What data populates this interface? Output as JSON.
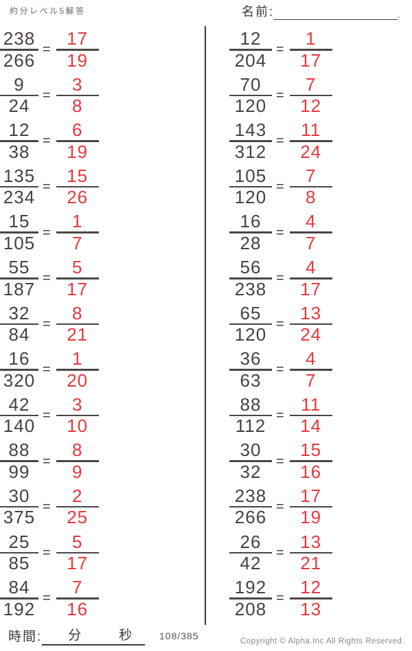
{
  "header": {
    "title": "約分レベル5解答",
    "name_label": "名前:",
    "name_line_end": "."
  },
  "equals": "=",
  "problems": {
    "left": [
      {
        "num": "238",
        "den": "266",
        "ans_num": "17",
        "ans_den": "19"
      },
      {
        "num": "9",
        "den": "24",
        "ans_num": "3",
        "ans_den": "8"
      },
      {
        "num": "12",
        "den": "38",
        "ans_num": "6",
        "ans_den": "19"
      },
      {
        "num": "135",
        "den": "234",
        "ans_num": "15",
        "ans_den": "26"
      },
      {
        "num": "15",
        "den": "105",
        "ans_num": "1",
        "ans_den": "7"
      },
      {
        "num": "55",
        "den": "187",
        "ans_num": "5",
        "ans_den": "17"
      },
      {
        "num": "32",
        "den": "84",
        "ans_num": "8",
        "ans_den": "21"
      },
      {
        "num": "16",
        "den": "320",
        "ans_num": "1",
        "ans_den": "20"
      },
      {
        "num": "42",
        "den": "140",
        "ans_num": "3",
        "ans_den": "10"
      },
      {
        "num": "88",
        "den": "99",
        "ans_num": "8",
        "ans_den": "9"
      },
      {
        "num": "30",
        "den": "375",
        "ans_num": "2",
        "ans_den": "25"
      },
      {
        "num": "25",
        "den": "85",
        "ans_num": "5",
        "ans_den": "17"
      },
      {
        "num": "84",
        "den": "192",
        "ans_num": "7",
        "ans_den": "16"
      }
    ],
    "right": [
      {
        "num": "12",
        "den": "204",
        "ans_num": "1",
        "ans_den": "17"
      },
      {
        "num": "70",
        "den": "120",
        "ans_num": "7",
        "ans_den": "12"
      },
      {
        "num": "143",
        "den": "312",
        "ans_num": "11",
        "ans_den": "24"
      },
      {
        "num": "105",
        "den": "120",
        "ans_num": "7",
        "ans_den": "8"
      },
      {
        "num": "16",
        "den": "28",
        "ans_num": "4",
        "ans_den": "7"
      },
      {
        "num": "56",
        "den": "238",
        "ans_num": "4",
        "ans_den": "17"
      },
      {
        "num": "65",
        "den": "120",
        "ans_num": "13",
        "ans_den": "24"
      },
      {
        "num": "36",
        "den": "63",
        "ans_num": "4",
        "ans_den": "7"
      },
      {
        "num": "88",
        "den": "112",
        "ans_num": "11",
        "ans_den": "14"
      },
      {
        "num": "30",
        "den": "32",
        "ans_num": "15",
        "ans_den": "16"
      },
      {
        "num": "238",
        "den": "266",
        "ans_num": "17",
        "ans_den": "19"
      },
      {
        "num": "26",
        "den": "42",
        "ans_num": "13",
        "ans_den": "21"
      },
      {
        "num": "192",
        "den": "208",
        "ans_num": "12",
        "ans_den": "13"
      }
    ]
  },
  "footer": {
    "time_label": "時間:",
    "minutes_label": "分",
    "seconds_label": "秒",
    "page": "108/385",
    "copyright": "Copyright ©  Alpha.Inc All Rights Reserved."
  },
  "colors": {
    "answer_red": "#e8383d",
    "ink": "#474140",
    "bar": "#4a4645"
  }
}
